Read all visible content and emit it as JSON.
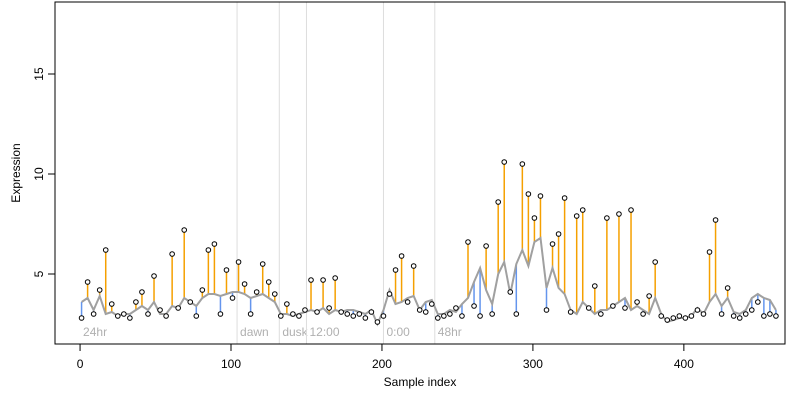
{
  "chart_data": {
    "type": "scatter",
    "x_label": "Sample index",
    "y_label": "Expression",
    "xlim": [
      -16.6,
      467
    ],
    "ylim": [
      1.5,
      18.6
    ],
    "xticks": [
      0,
      100,
      200,
      300,
      400
    ],
    "yticks": [
      5,
      10,
      15
    ],
    "point_color": "#000000",
    "above_color": "#f5a000",
    "below_color": "#6495ed",
    "fit_color": "#a0a0a0",
    "annotation_color": "#b0b0b0",
    "annotation_y": 2.1,
    "annotations": [
      {
        "x": 0,
        "label": "24hr",
        "line": false
      },
      {
        "x": 104,
        "label": "dawn",
        "line": true
      },
      {
        "x": 132,
        "label": "dusk",
        "line": true
      },
      {
        "x": 150,
        "label": "12:00",
        "line": true
      },
      {
        "x": 201,
        "label": "0:00",
        "line": true
      },
      {
        "x": 235,
        "label": "48hr",
        "line": true
      }
    ],
    "x": [
      1,
      5,
      9,
      13,
      17,
      21,
      25,
      29,
      33,
      37,
      41,
      45,
      49,
      53,
      57,
      61,
      65,
      69,
      73,
      77,
      81,
      85,
      89,
      93,
      97,
      101,
      105,
      109,
      113,
      117,
      121,
      125,
      129,
      133,
      137,
      141,
      145,
      149,
      153,
      157,
      161,
      165,
      169,
      173,
      177,
      181,
      185,
      189,
      193,
      197,
      201,
      205,
      209,
      213,
      217,
      221,
      225,
      229,
      233,
      237,
      241,
      245,
      249,
      253,
      257,
      261,
      265,
      269,
      273,
      277,
      281,
      285,
      289,
      293,
      297,
      301,
      305,
      309,
      313,
      317,
      321,
      325,
      329,
      333,
      337,
      341,
      345,
      349,
      353,
      357,
      361,
      365,
      369,
      373,
      377,
      381,
      385,
      389,
      393,
      397,
      401,
      405,
      409,
      413,
      417,
      421,
      425,
      429,
      433,
      437,
      441,
      445,
      449,
      453,
      457,
      461
    ],
    "values": [
      2.8,
      4.6,
      3.0,
      4.2,
      6.2,
      3.5,
      2.9,
      3.0,
      2.8,
      3.6,
      4.1,
      3.0,
      4.9,
      3.2,
      2.9,
      6.0,
      3.3,
      7.2,
      3.6,
      2.9,
      4.2,
      6.2,
      6.5,
      3.0,
      5.2,
      3.8,
      5.6,
      4.5,
      3.0,
      4.1,
      5.5,
      4.6,
      4.0,
      2.9,
      3.5,
      3.0,
      2.9,
      3.2,
      4.7,
      3.1,
      4.7,
      3.3,
      4.8,
      3.1,
      3.0,
      2.9,
      3.0,
      2.8,
      3.1,
      2.6,
      2.9,
      4.0,
      5.2,
      5.9,
      3.6,
      5.4,
      3.2,
      3.1,
      3.5,
      2.8,
      2.9,
      3.0,
      3.3,
      2.9,
      6.6,
      3.4,
      2.9,
      6.4,
      3.0,
      8.6,
      10.6,
      4.1,
      3.0,
      10.5,
      9.0,
      7.8,
      8.9,
      3.2,
      6.5,
      7.0,
      8.8,
      3.1,
      7.9,
      8.2,
      3.3,
      4.4,
      3.0,
      7.8,
      3.4,
      8.0,
      3.3,
      8.2,
      3.6,
      3.0,
      3.9,
      5.6,
      2.9,
      2.7,
      2.8,
      2.9,
      2.8,
      2.9,
      3.2,
      3.0,
      6.1,
      7.7,
      3.0,
      4.3,
      2.9,
      2.8,
      3.0,
      3.2,
      3.6,
      2.9,
      3.0,
      2.9
    ],
    "fit": [
      3.6,
      3.8,
      3.2,
      3.9,
      3.0,
      3.1,
      2.9,
      3.0,
      3.0,
      3.2,
      3.4,
      3.2,
      3.6,
      3.0,
      3.0,
      3.4,
      3.3,
      3.8,
      3.6,
      3.4,
      3.8,
      4.0,
      4.0,
      3.9,
      4.0,
      4.1,
      4.1,
      4.0,
      3.8,
      3.9,
      4.0,
      3.8,
      3.6,
      3.0,
      3.0,
      2.9,
      3.0,
      3.1,
      3.2,
      3.1,
      3.3,
      3.0,
      3.2,
      3.1,
      3.2,
      3.2,
      3.1,
      3.0,
      3.2,
      2.5,
      3.2,
      4.2,
      3.5,
      3.6,
      3.8,
      3.9,
      3.2,
      3.6,
      3.7,
      3.0,
      3.0,
      3.2,
      3.1,
      3.5,
      3.8,
      4.6,
      5.3,
      4.2,
      3.5,
      5.0,
      5.6,
      4.0,
      5.5,
      6.2,
      5.4,
      6.6,
      6.8,
      4.3,
      5.3,
      4.3,
      4.0,
      3.2,
      3.0,
      3.6,
      3.3,
      3.0,
      3.2,
      3.2,
      3.4,
      3.6,
      3.8,
      3.2,
      3.4,
      3.2,
      3.0,
      3.8,
      3.0,
      2.6,
      2.7,
      2.8,
      2.8,
      2.9,
      3.3,
      3.0,
      3.6,
      4.0,
      3.4,
      3.8,
      3.1,
      3.0,
      3.2,
      3.8,
      4.0,
      3.8,
      3.7,
      3.2
    ]
  }
}
